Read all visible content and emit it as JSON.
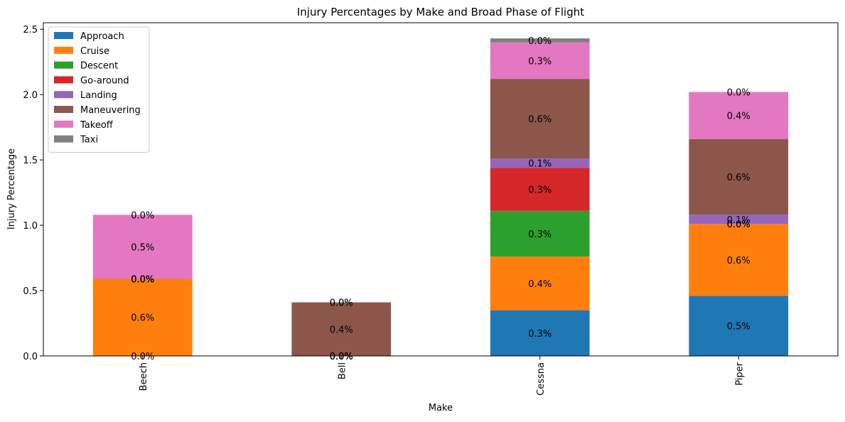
{
  "chart_data": {
    "type": "bar",
    "stacked": true,
    "title": "Injury Percentages by Make and Broad Phase of Flight",
    "xlabel": "Make",
    "ylabel": "Injury Percentage",
    "ylim": [
      0,
      2.55
    ],
    "yticks": [
      0.0,
      0.5,
      1.0,
      1.5,
      2.0,
      2.5
    ],
    "ytick_labels": [
      "0.0",
      "0.5",
      "1.0",
      "1.5",
      "2.0",
      "2.5"
    ],
    "categories": [
      "Beech",
      "Bell",
      "Cessna",
      "Piper"
    ],
    "legend_position": "top-left",
    "grid": false,
    "series": [
      {
        "name": "Approach",
        "color": "#1f77b4",
        "values": [
          0.0,
          0.0,
          0.35,
          0.46
        ]
      },
      {
        "name": "Cruise",
        "color": "#ff7f0e",
        "values": [
          0.59,
          0.0,
          0.41,
          0.55
        ]
      },
      {
        "name": "Descent",
        "color": "#2ca02c",
        "values": [
          0.0,
          0.0,
          0.35,
          0.0
        ]
      },
      {
        "name": "Go-around",
        "color": "#d62728",
        "values": [
          0.0,
          0.0,
          0.33,
          0.0
        ]
      },
      {
        "name": "Landing",
        "color": "#9467bd",
        "values": [
          0.0,
          0.0,
          0.07,
          0.07
        ]
      },
      {
        "name": "Maneuvering",
        "color": "#8c564b",
        "values": [
          0.0,
          0.41,
          0.61,
          0.58
        ]
      },
      {
        "name": "Takeoff",
        "color": "#e377c2",
        "values": [
          0.49,
          0.0,
          0.28,
          0.36
        ]
      },
      {
        "name": "Taxi",
        "color": "#7f7f7f",
        "values": [
          0.0,
          0.0,
          0.03,
          0.0
        ]
      }
    ],
    "data_labels": [
      [
        "0.0%",
        "0.6%",
        "0.0%",
        "0.0%",
        "0.0%",
        "0.0%",
        "0.5%",
        "0.0%"
      ],
      [
        "0.0%",
        "0.0%",
        "0.0%",
        "0.0%",
        "0.0%",
        "0.4%",
        "0.0%",
        "0.0%"
      ],
      [
        "0.3%",
        "0.4%",
        "0.3%",
        "0.3%",
        "0.1%",
        "0.6%",
        "0.3%",
        "0.0%"
      ],
      [
        "0.5%",
        "0.6%",
        "0.0%",
        "0.0%",
        "0.1%",
        "0.6%",
        "0.4%",
        "0.0%"
      ]
    ]
  }
}
